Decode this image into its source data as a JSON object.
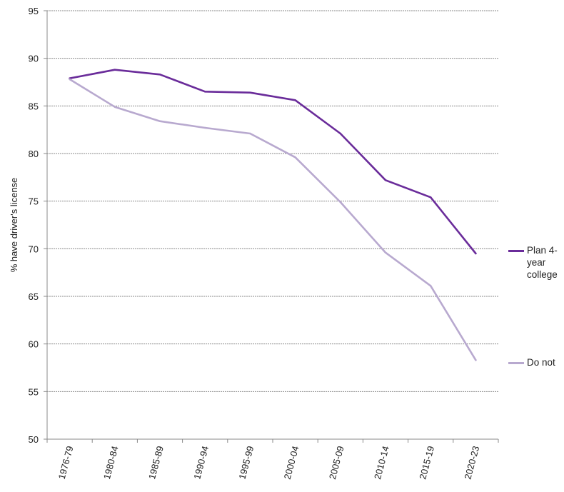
{
  "chart_data": {
    "type": "line",
    "categories": [
      "1976-79",
      "1980-84",
      "1985-89",
      "1990-94",
      "1995-99",
      "2000-04",
      "2005-09",
      "2010-14",
      "2015-19",
      "2020-23"
    ],
    "series": [
      {
        "name": "Plan 4-year college",
        "color": "#6a2c9a",
        "values": [
          87.9,
          88.8,
          88.3,
          86.5,
          86.4,
          85.6,
          82.1,
          77.2,
          75.4,
          69.5
        ]
      },
      {
        "name": "Do not",
        "color": "#b8a9cf",
        "values": [
          87.8,
          84.9,
          83.4,
          82.7,
          82.1,
          79.6,
          74.9,
          69.6,
          66.1,
          58.3
        ]
      }
    ],
    "title": "",
    "xlabel": "",
    "ylabel": "% have driver's license",
    "ylim": [
      50,
      95
    ],
    "yticks": [
      50,
      55,
      60,
      65,
      70,
      75,
      80,
      85,
      90,
      95
    ],
    "grid": true,
    "legend_position": "right"
  }
}
